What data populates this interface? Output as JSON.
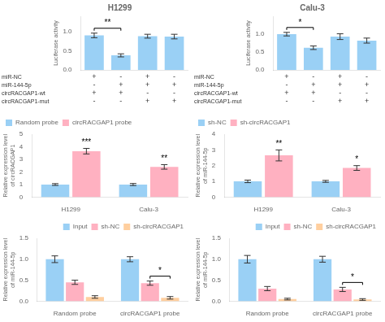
{
  "chart_data": [
    {
      "type": "bar",
      "title": "H1299",
      "ylabel": "Luciferase activity",
      "categories": [
        null,
        null,
        null,
        null
      ],
      "values": [
        0.9,
        0.38,
        0.88,
        0.87
      ],
      "errors": [
        0.06,
        0.04,
        0.05,
        0.06
      ],
      "ylim": [
        0,
        1.4
      ],
      "yticks": [
        {
          "value": 0,
          "label": "0.0"
        },
        0.5,
        {
          "value": 1,
          "label": "1.0"
        }
      ],
      "grid": false,
      "tick_labels": "y",
      "annotations": [
        {
          "text": "**",
          "from": 0,
          "to": 1
        }
      ],
      "sign_rows": [
        {
          "label": "miR-NC",
          "signs": [
            "+",
            "-",
            "+",
            "-"
          ]
        },
        {
          "label": "miR-144-5p",
          "signs": [
            "-",
            "+",
            "+",
            "+"
          ]
        },
        {
          "label": "circRACGAP1-wt",
          "signs": [
            "+",
            "+",
            "-",
            "-"
          ]
        },
        {
          "label": "circRACGAP1-mut",
          "signs": [
            "-",
            "-",
            "+",
            "+"
          ]
        }
      ]
    },
    {
      "type": "bar",
      "title": "Calu-3",
      "ylabel": "Luciferase activity",
      "categories": [
        null,
        null,
        null,
        null
      ],
      "values": [
        1.0,
        0.62,
        0.93,
        0.82
      ],
      "errors": [
        0.05,
        0.05,
        0.08,
        0.07
      ],
      "ylim": [
        0,
        1.5
      ],
      "yticks": [
        {
          "value": 0,
          "label": "0.0"
        },
        0.5,
        {
          "value": 1,
          "label": "1.0"
        }
      ],
      "grid": false,
      "tick_labels": "y",
      "annotations": [
        {
          "text": "*",
          "from": 0,
          "to": 1
        }
      ],
      "sign_rows": [
        {
          "label": "miR-NC",
          "signs": [
            "+",
            "-",
            "+",
            "-"
          ]
        },
        {
          "label": "miR-144-5p",
          "signs": [
            "-",
            "+",
            "+",
            "+"
          ]
        },
        {
          "label": "circRACGAP1-wt",
          "signs": [
            "+",
            "+",
            "-",
            "-"
          ]
        },
        {
          "label": "circRACGAP1-mut",
          "signs": [
            "-",
            "-",
            "+",
            "+"
          ]
        }
      ]
    },
    {
      "type": "bar",
      "ylabel": "Relative expression level\nof circRACGAP1",
      "categories": [
        "H1299",
        "Calu-3"
      ],
      "series": [
        {
          "name": "Random probe",
          "values": [
            1.0,
            1.0
          ],
          "errors": [
            0.07,
            0.08
          ]
        },
        {
          "name": "circRACGAP1 probe",
          "values": [
            3.65,
            2.4
          ],
          "errors": [
            0.22,
            0.18
          ]
        }
      ],
      "ylim": [
        0,
        5
      ],
      "yticks": [
        0,
        1,
        2,
        3,
        4,
        5
      ],
      "grid": false,
      "legend": "upper left",
      "annotations": [
        {
          "text": "***",
          "series": "circRACGAP1 probe",
          "category": "H1299"
        },
        {
          "text": "**",
          "series": "circRACGAP1 probe",
          "category": "Calu-3"
        }
      ]
    },
    {
      "type": "bar",
      "ylabel": "Relative expression level\nof miR-144-5p",
      "categories": [
        "H1299",
        "Calu-3"
      ],
      "series": [
        {
          "name": "sh-NC",
          "values": [
            1.0,
            1.0
          ],
          "errors": [
            0.08,
            0.06
          ]
        },
        {
          "name": "sh-circRACGAP1",
          "values": [
            2.65,
            1.85
          ],
          "errors": [
            0.35,
            0.15
          ]
        }
      ],
      "ylim": [
        0,
        4
      ],
      "yticks": [
        0,
        1,
        2,
        3,
        4
      ],
      "grid": false,
      "legend": "upper left",
      "annotations": [
        {
          "text": "**",
          "series": "sh-circRACGAP1",
          "category": "H1299"
        },
        {
          "text": "*",
          "series": "sh-circRACGAP1",
          "category": "Calu-3"
        }
      ]
    },
    {
      "type": "bar",
      "ylabel": "Relative expression level\nof miR-144-5p",
      "categories": [
        "Random probe",
        "circRACGAP1 probe"
      ],
      "series": [
        {
          "name": "Input",
          "values": [
            1.0,
            1.0
          ],
          "errors": [
            0.08,
            0.06
          ]
        },
        {
          "name": "sh-NC",
          "values": [
            0.45,
            0.43
          ],
          "errors": [
            0.05,
            0.05
          ]
        },
        {
          "name": "sh-circRACGAP1",
          "values": [
            0.1,
            0.08
          ],
          "errors": [
            0.03,
            0.03
          ]
        }
      ],
      "ylim": [
        0,
        1.5
      ],
      "yticks": [
        {
          "value": 0,
          "label": "0.0"
        },
        0.5,
        {
          "value": 1,
          "label": "1.0"
        },
        1.5
      ],
      "grid": false,
      "legend": "upper right",
      "annotations": [
        {
          "text": "*",
          "series": [
            "sh-NC",
            "sh-circRACGAP1"
          ],
          "category": "circRACGAP1 probe"
        }
      ]
    },
    {
      "type": "bar",
      "ylabel": "Relative expression level\nof miR-144-5p",
      "categories": [
        "Random probe",
        "circRACGAP1 probe"
      ],
      "series": [
        {
          "name": "Input",
          "values": [
            1.0,
            1.0
          ],
          "errors": [
            0.09,
            0.07
          ]
        },
        {
          "name": "sh-NC",
          "values": [
            0.3,
            0.28
          ],
          "errors": [
            0.05,
            0.05
          ]
        },
        {
          "name": "sh-circRACGAP1",
          "values": [
            0.05,
            0.04
          ],
          "errors": [
            0.02,
            0.02
          ]
        }
      ],
      "ylim": [
        0,
        1.5
      ],
      "yticks": [
        {
          "value": 0,
          "label": "0.0"
        },
        0.5,
        {
          "value": 1,
          "label": "1.0"
        },
        1.5
      ],
      "grid": false,
      "legend": "upper right",
      "annotations": [
        {
          "text": "*",
          "series": [
            "sh-NC",
            "sh-circRACGAP1"
          ],
          "category": "circRACGAP1 probe"
        }
      ]
    }
  ]
}
